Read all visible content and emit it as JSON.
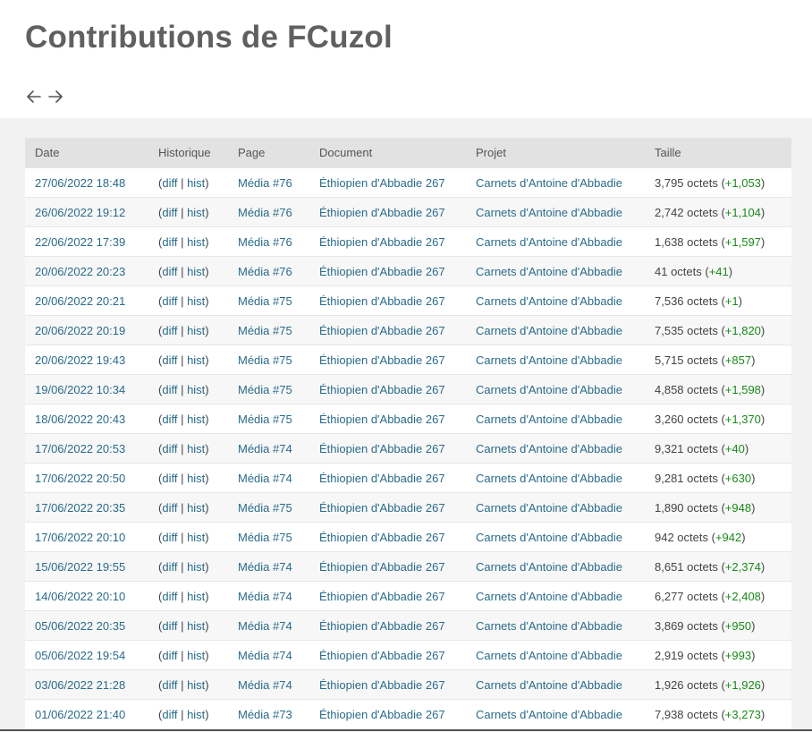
{
  "page": {
    "title": "Contributions de FCuzol"
  },
  "nav": {
    "prev_icon": "arrow-left-icon",
    "next_icon": "arrow-right-icon"
  },
  "colors": {
    "link": "#2a6b8a",
    "delta_positive": "#1a8a1a",
    "title": "#606060",
    "header_bg": "#e2e2e2"
  },
  "table": {
    "headers": [
      "Date",
      "Historique",
      "Page",
      "Document",
      "Projet",
      "Taille"
    ],
    "diff_label": "diff",
    "hist_label": "hist",
    "rows": [
      {
        "date": "27/06/2022 18:48",
        "page": "Média #76",
        "document": "Éthiopien d'Abbadie 267",
        "project": "Carnets d'Antoine d'Abbadie",
        "size": "3,795 octets",
        "delta": "+1,053"
      },
      {
        "date": "26/06/2022 19:12",
        "page": "Média #76",
        "document": "Éthiopien d'Abbadie 267",
        "project": "Carnets d'Antoine d'Abbadie",
        "size": "2,742 octets",
        "delta": "+1,104"
      },
      {
        "date": "22/06/2022 17:39",
        "page": "Média #76",
        "document": "Éthiopien d'Abbadie 267",
        "project": "Carnets d'Antoine d'Abbadie",
        "size": "1,638 octets",
        "delta": "+1,597"
      },
      {
        "date": "20/06/2022 20:23",
        "page": "Média #76",
        "document": "Éthiopien d'Abbadie 267",
        "project": "Carnets d'Antoine d'Abbadie",
        "size": "41 octets",
        "delta": "+41"
      },
      {
        "date": "20/06/2022 20:21",
        "page": "Média #75",
        "document": "Éthiopien d'Abbadie 267",
        "project": "Carnets d'Antoine d'Abbadie",
        "size": "7,536 octets",
        "delta": "+1"
      },
      {
        "date": "20/06/2022 20:19",
        "page": "Média #75",
        "document": "Éthiopien d'Abbadie 267",
        "project": "Carnets d'Antoine d'Abbadie",
        "size": "7,535 octets",
        "delta": "+1,820"
      },
      {
        "date": "20/06/2022 19:43",
        "page": "Média #75",
        "document": "Éthiopien d'Abbadie 267",
        "project": "Carnets d'Antoine d'Abbadie",
        "size": "5,715 octets",
        "delta": "+857"
      },
      {
        "date": "19/06/2022 10:34",
        "page": "Média #75",
        "document": "Éthiopien d'Abbadie 267",
        "project": "Carnets d'Antoine d'Abbadie",
        "size": "4,858 octets",
        "delta": "+1,598"
      },
      {
        "date": "18/06/2022 20:43",
        "page": "Média #75",
        "document": "Éthiopien d'Abbadie 267",
        "project": "Carnets d'Antoine d'Abbadie",
        "size": "3,260 octets",
        "delta": "+1,370"
      },
      {
        "date": "17/06/2022 20:53",
        "page": "Média #74",
        "document": "Éthiopien d'Abbadie 267",
        "project": "Carnets d'Antoine d'Abbadie",
        "size": "9,321 octets",
        "delta": "+40"
      },
      {
        "date": "17/06/2022 20:50",
        "page": "Média #74",
        "document": "Éthiopien d'Abbadie 267",
        "project": "Carnets d'Antoine d'Abbadie",
        "size": "9,281 octets",
        "delta": "+630"
      },
      {
        "date": "17/06/2022 20:35",
        "page": "Média #75",
        "document": "Éthiopien d'Abbadie 267",
        "project": "Carnets d'Antoine d'Abbadie",
        "size": "1,890 octets",
        "delta": "+948"
      },
      {
        "date": "17/06/2022 20:10",
        "page": "Média #75",
        "document": "Éthiopien d'Abbadie 267",
        "project": "Carnets d'Antoine d'Abbadie",
        "size": "942 octets",
        "delta": "+942"
      },
      {
        "date": "15/06/2022 19:55",
        "page": "Média #74",
        "document": "Éthiopien d'Abbadie 267",
        "project": "Carnets d'Antoine d'Abbadie",
        "size": "8,651 octets",
        "delta": "+2,374"
      },
      {
        "date": "14/06/2022 20:10",
        "page": "Média #74",
        "document": "Éthiopien d'Abbadie 267",
        "project": "Carnets d'Antoine d'Abbadie",
        "size": "6,277 octets",
        "delta": "+2,408"
      },
      {
        "date": "05/06/2022 20:35",
        "page": "Média #74",
        "document": "Éthiopien d'Abbadie 267",
        "project": "Carnets d'Antoine d'Abbadie",
        "size": "3,869 octets",
        "delta": "+950"
      },
      {
        "date": "05/06/2022 19:54",
        "page": "Média #74",
        "document": "Éthiopien d'Abbadie 267",
        "project": "Carnets d'Antoine d'Abbadie",
        "size": "2,919 octets",
        "delta": "+993"
      },
      {
        "date": "03/06/2022 21:28",
        "page": "Média #74",
        "document": "Éthiopien d'Abbadie 267",
        "project": "Carnets d'Antoine d'Abbadie",
        "size": "1,926 octets",
        "delta": "+1,926"
      },
      {
        "date": "01/06/2022 21:40",
        "page": "Média #73",
        "document": "Éthiopien d'Abbadie 267",
        "project": "Carnets d'Antoine d'Abbadie",
        "size": "7,938 octets",
        "delta": "+3,273"
      }
    ]
  }
}
